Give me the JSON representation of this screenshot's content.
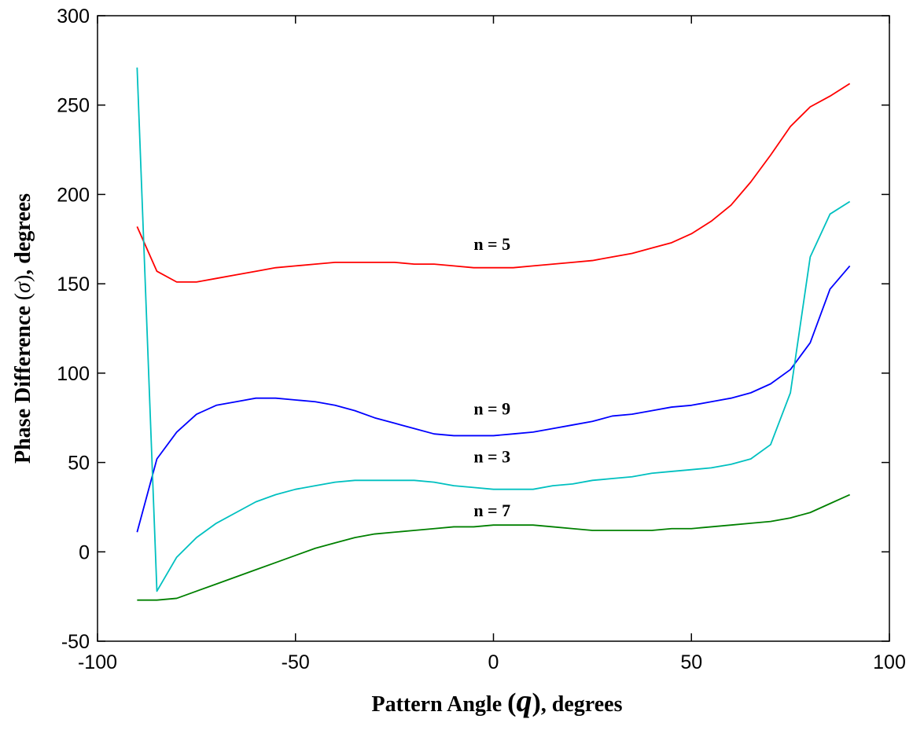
{
  "chart_data": {
    "type": "line",
    "xlabel_parts": [
      "Pattern Angle ",
      "(",
      "q",
      ")",
      ", degrees"
    ],
    "ylabel_parts": [
      "Phase Difference ",
      "(",
      "σ",
      ")",
      ", degrees"
    ],
    "xlim": [
      -100,
      100
    ],
    "ylim": [
      -50,
      300
    ],
    "xticks": [
      -100,
      -50,
      0,
      50,
      100
    ],
    "yticks": [
      -50,
      0,
      50,
      100,
      150,
      200,
      250,
      300
    ],
    "grid": false,
    "legend": "none",
    "x": [
      -90,
      -85,
      -80,
      -75,
      -70,
      -65,
      -60,
      -55,
      -50,
      -45,
      -40,
      -35,
      -30,
      -25,
      -20,
      -15,
      -10,
      -5,
      0,
      5,
      10,
      15,
      20,
      25,
      30,
      35,
      40,
      45,
      50,
      55,
      60,
      65,
      70,
      75,
      80,
      85,
      90
    ],
    "series": [
      {
        "name": "n = 5",
        "color": "#ff0000",
        "label_at": [
          -5,
          172
        ],
        "values": [
          182,
          157,
          151,
          151,
          153,
          155,
          157,
          159,
          160,
          161,
          162,
          162,
          162,
          162,
          161,
          161,
          160,
          159,
          159,
          159,
          160,
          161,
          162,
          163,
          165,
          167,
          170,
          173,
          178,
          185,
          194,
          207,
          222,
          238,
          249,
          255,
          262
        ]
      },
      {
        "name": "n = 9",
        "color": "#0000ff",
        "label_at": [
          -5,
          80
        ],
        "values": [
          11,
          52,
          67,
          77,
          82,
          84,
          86,
          86,
          85,
          84,
          82,
          79,
          75,
          72,
          69,
          66,
          65,
          65,
          65,
          66,
          67,
          69,
          71,
          73,
          76,
          77,
          79,
          81,
          82,
          84,
          86,
          89,
          94,
          102,
          117,
          147,
          160
        ]
      },
      {
        "name": "n = 3",
        "color": "#00c0c0",
        "label_at": [
          -5,
          53
        ],
        "values": [
          271,
          -22,
          -3,
          8,
          16,
          22,
          28,
          32,
          35,
          37,
          39,
          40,
          40,
          40,
          40,
          39,
          37,
          36,
          35,
          35,
          35,
          37,
          38,
          40,
          41,
          42,
          44,
          45,
          46,
          47,
          49,
          52,
          60,
          89,
          165,
          189,
          196
        ]
      },
      {
        "name": "n = 7",
        "color": "#008000",
        "label_at": [
          -5,
          23
        ],
        "values": [
          -27,
          -27,
          -26,
          -22,
          -18,
          -14,
          -10,
          -6,
          -2,
          2,
          5,
          8,
          10,
          11,
          12,
          13,
          14,
          14,
          15,
          15,
          15,
          14,
          13,
          12,
          12,
          12,
          12,
          13,
          13,
          14,
          15,
          16,
          17,
          19,
          22,
          27,
          32
        ]
      }
    ]
  }
}
